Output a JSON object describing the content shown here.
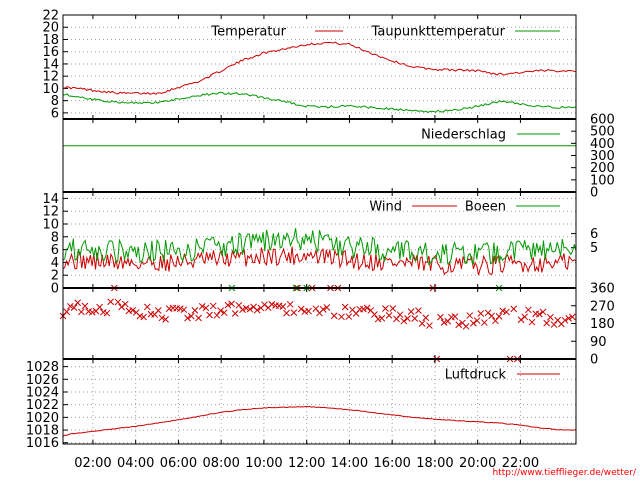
{
  "chart_data": [
    {
      "type": "line",
      "name": "temperature",
      "legend": [
        "Temperatur",
        "Taupunkttemperatur"
      ],
      "left_ticks": [
        "22",
        "20",
        "18",
        "16",
        "14",
        "12",
        "10",
        "8",
        "6"
      ],
      "ylim": [
        5,
        22
      ],
      "grid": true,
      "legend_position": "top",
      "series": [
        {
          "name": "Temperatur",
          "color": "#cc0000",
          "x": [
            0,
            1,
            2,
            3,
            3.5,
            4,
            5,
            5.5,
            6,
            7,
            8,
            9,
            10,
            11,
            12,
            13,
            14,
            15,
            16,
            17,
            18,
            19,
            20,
            21,
            22,
            23,
            24
          ],
          "y": [
            10.3,
            10.1,
            9.7,
            9.3,
            9.2,
            9.2,
            9.2,
            9.6,
            10.2,
            11.2,
            12.9,
            14.6,
            15.8,
            16.5,
            17.2,
            17.5,
            17.2,
            15.8,
            14.5,
            13.5,
            13.1,
            13.0,
            12.9,
            12.3,
            12.6,
            12.9,
            12.9
          ]
        },
        {
          "name": "Taupunkttemperatur",
          "color": "#009900",
          "x": [
            0,
            1,
            2,
            3,
            4,
            5,
            6,
            7,
            8,
            9,
            10,
            11,
            12,
            13,
            14,
            15,
            16,
            17,
            18,
            19,
            20,
            21,
            22,
            23,
            24
          ],
          "y": [
            9.6,
            8.8,
            8.2,
            7.8,
            7.6,
            7.7,
            8.3,
            8.9,
            9.2,
            9.1,
            8.5,
            7.8,
            7.1,
            7.0,
            7.1,
            6.9,
            6.6,
            6.3,
            6.2,
            6.5,
            7.1,
            7.9,
            7.5,
            7.0,
            6.9
          ]
        }
      ]
    },
    {
      "type": "line",
      "name": "precipitation",
      "legend": [
        "Niederschlag"
      ],
      "right_ticks": [
        "600",
        "500",
        "400",
        "300",
        "200",
        "100",
        "0"
      ],
      "ylim": [
        0,
        600
      ],
      "series": [
        {
          "name": "Niederschlag",
          "color": "#009900",
          "x": [
            0,
            24
          ],
          "y": [
            380,
            380
          ]
        }
      ]
    },
    {
      "type": "line",
      "name": "wind",
      "legend": [
        "Wind",
        "Boeen"
      ],
      "left_ticks": [
        "14",
        "12",
        "10",
        "8",
        "6",
        "4",
        "2",
        "0"
      ],
      "right_ticks": [
        "6",
        "5"
      ],
      "ylim": [
        0,
        15
      ],
      "grid": true,
      "series": [
        {
          "name": "Wind",
          "color": "#cc0000",
          "x": [
            0,
            2,
            4,
            6,
            8,
            10,
            12,
            14,
            16,
            18,
            20,
            22,
            24
          ],
          "y": [
            4.6,
            4.2,
            3.9,
            4.1,
            4.5,
            5.0,
            5.1,
            4.4,
            4.0,
            3.6,
            3.5,
            3.8,
            4.0
          ]
        },
        {
          "name": "Boeen",
          "color": "#009900",
          "x": [
            0,
            2,
            4,
            6,
            8,
            10,
            12,
            14,
            16,
            18,
            20,
            22,
            24
          ],
          "y": [
            6.3,
            5.9,
            5.6,
            5.8,
            6.4,
            7.4,
            7.7,
            6.4,
            5.8,
            5.3,
            5.3,
            5.7,
            5.9
          ]
        }
      ]
    },
    {
      "type": "scatter",
      "name": "wind-direction",
      "right_ticks": [
        "360",
        "270",
        "180",
        "90",
        "0"
      ],
      "ylim": [
        0,
        360
      ],
      "series": [
        {
          "name": "Wind",
          "color": "#cc0000",
          "x": [
            0,
            1,
            2,
            3,
            4,
            5,
            6,
            7,
            8,
            9,
            10,
            11,
            12,
            13,
            14,
            15,
            16,
            17,
            18,
            19,
            20,
            21,
            22,
            23,
            24
          ],
          "y": [
            250,
            255,
            265,
            260,
            250,
            235,
            225,
            240,
            255,
            265,
            270,
            255,
            245,
            240,
            235,
            230,
            230,
            215,
            195,
            185,
            195,
            215,
            225,
            210,
            205
          ]
        },
        {
          "name": "Boeen",
          "color": "#009900",
          "x": [
            8.5,
            11.5,
            12.0,
            21.0
          ],
          "y": [
            360,
            360,
            360,
            360
          ]
        }
      ]
    },
    {
      "type": "line",
      "name": "pressure",
      "legend": [
        "Luftdruck"
      ],
      "left_ticks": [
        "1028",
        "1026",
        "1024",
        "1022",
        "1020",
        "1018",
        "1016"
      ],
      "ylim": [
        1015.8,
        1029.2
      ],
      "grid": true,
      "series": [
        {
          "name": "Luftdruck",
          "color": "#cc0000",
          "x": [
            0,
            0.5,
            1,
            2,
            3,
            4,
            5,
            6,
            7,
            8,
            9,
            10,
            11,
            12,
            13,
            14,
            15,
            16,
            17,
            18,
            19,
            20,
            21,
            22,
            23,
            24
          ],
          "y": [
            1016.5,
            1017.0,
            1017.4,
            1017.8,
            1018.2,
            1018.6,
            1019.1,
            1019.6,
            1020.2,
            1020.8,
            1021.2,
            1021.5,
            1021.6,
            1021.7,
            1021.5,
            1021.2,
            1020.8,
            1020.4,
            1020.0,
            1019.7,
            1019.5,
            1019.3,
            1019.1,
            1018.8,
            1018.3,
            1018.0
          ]
        }
      ]
    }
  ],
  "x_ticks": [
    "02:00",
    "04:00",
    "06:00",
    "08:00",
    "10:00",
    "12:00",
    "14:00",
    "16:00",
    "18:00",
    "20:00",
    "22:00"
  ],
  "source_url": "http://www.tiefflieger.de/wetter/",
  "colors": {
    "red": "#cc0000",
    "green": "#009900",
    "grid": "#a0a0a0",
    "axis": "#000000",
    "url": "#ff0000"
  }
}
